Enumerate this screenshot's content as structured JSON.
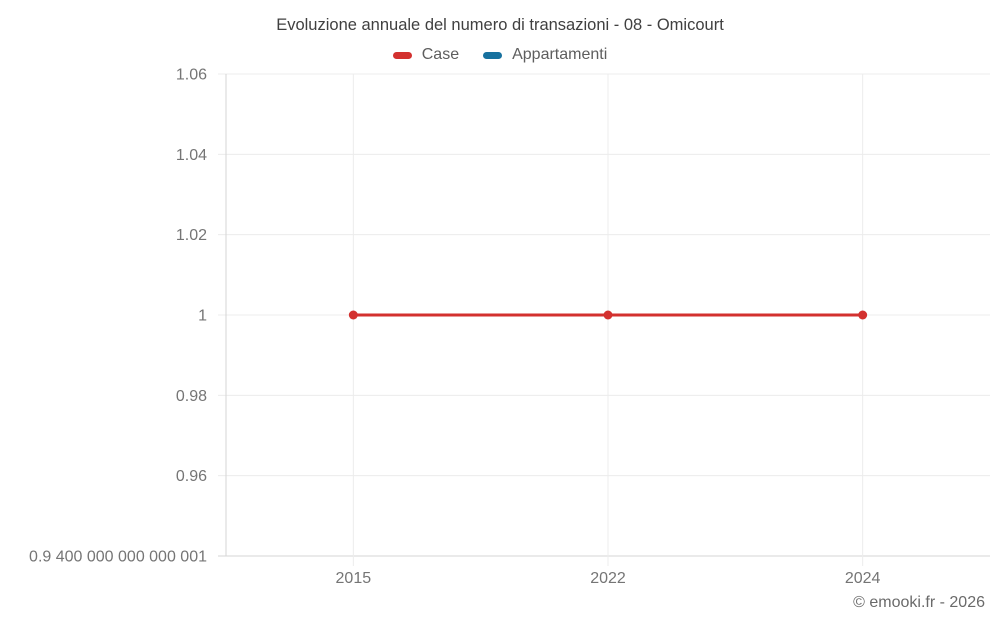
{
  "chart_data": {
    "type": "line",
    "title": "Evoluzione annuale del numero di transazioni - 08 - Omicourt",
    "categories": [
      "2015",
      "2022",
      "2024"
    ],
    "series": [
      {
        "name": "Case",
        "color": "#d3312f",
        "values": [
          1,
          1,
          1
        ]
      },
      {
        "name": "Appartamenti",
        "color": "#17719f",
        "values": []
      }
    ],
    "y_axis": {
      "min": 0.9400000000000001,
      "max": 1.06,
      "ticks": [
        {
          "value": 0.9400000000000001,
          "label": "0.9 400 000 000 000 001"
        },
        {
          "value": 0.96,
          "label": "0.96"
        },
        {
          "value": 0.98,
          "label": "0.98"
        },
        {
          "value": 1,
          "label": "1"
        },
        {
          "value": 1.02,
          "label": "1.02"
        },
        {
          "value": 1.04,
          "label": "1.04"
        },
        {
          "value": 1.06,
          "label": "1.06"
        }
      ]
    },
    "xlabel": "",
    "ylabel": "",
    "grid": true,
    "legend_position": "top",
    "footer": "© emooki.fr - 2026"
  },
  "colors": {
    "background": "#ffffff",
    "grid": "#ececec",
    "axis": "#d5d5d5",
    "title_text": "#404040",
    "tick_text": "#757575",
    "legend_text": "#5e5e5e",
    "footer_text": "#6a6a6a"
  }
}
